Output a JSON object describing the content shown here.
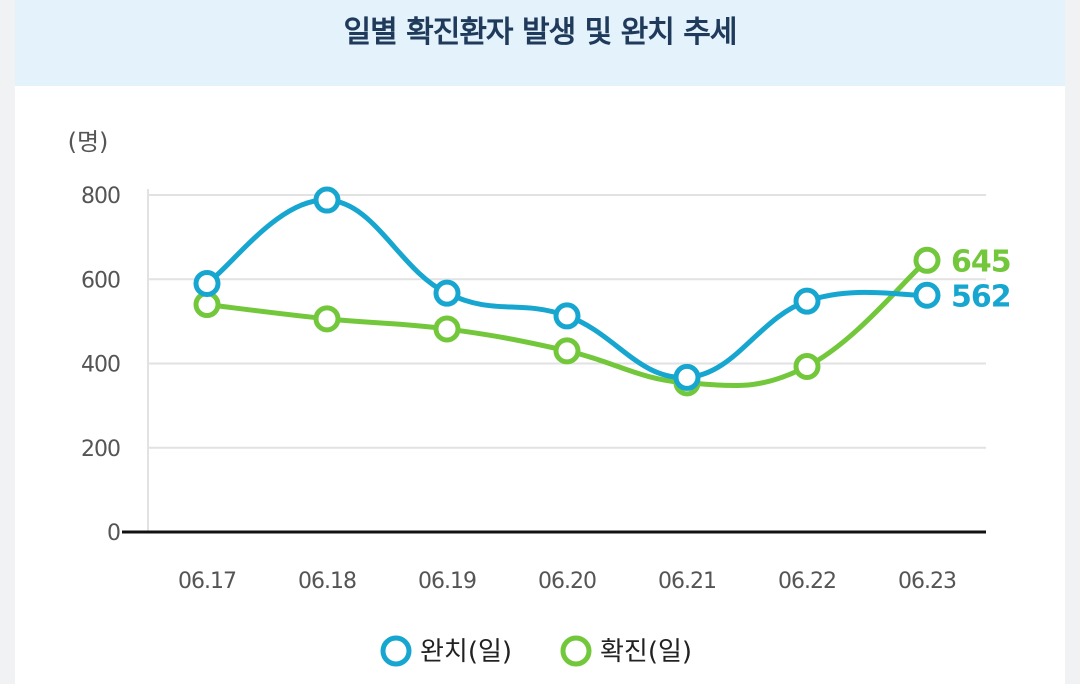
{
  "chart_data": {
    "type": "line",
    "title": "일별 확진환자 발생 및 완치 추세",
    "ylabel": "(명)",
    "xlabel": "",
    "ylim": [
      0,
      800
    ],
    "yticks": [
      0,
      200,
      400,
      600,
      800
    ],
    "categories": [
      "06.17",
      "06.18",
      "06.19",
      "06.20",
      "06.21",
      "06.22",
      "06.23"
    ],
    "series": [
      {
        "name": "완치(일)",
        "color": "#16a6d0",
        "values": [
          590,
          788,
          567,
          513,
          367,
          548,
          562
        ],
        "end_label": "562"
      },
      {
        "name": "확진(일)",
        "color": "#72c73b",
        "values": [
          540,
          506,
          482,
          430,
          354,
          393,
          645
        ],
        "end_label": "645"
      }
    ],
    "legend": "bottom-center",
    "grid": true
  }
}
